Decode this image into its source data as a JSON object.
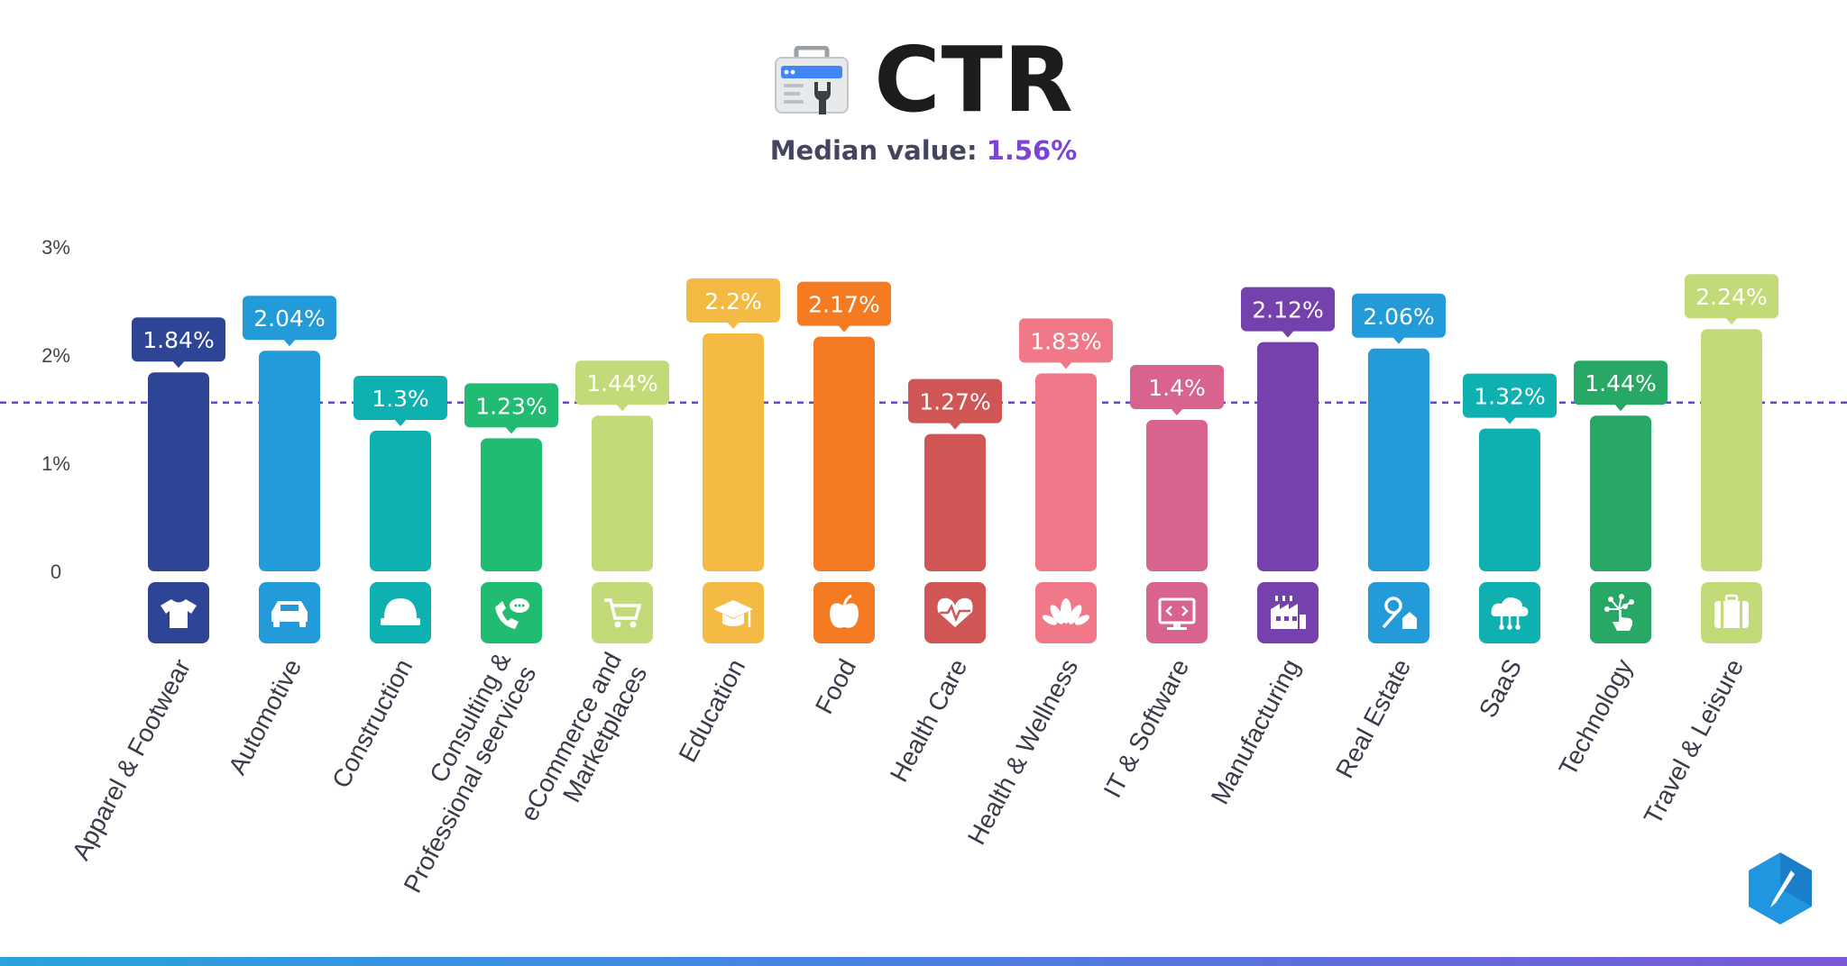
{
  "header": {
    "title": "CTR",
    "subtitle_label": "Median value:",
    "subtitle_value": "1.56%"
  },
  "icons": {
    "title_icon": "google-ads-tool-icon",
    "brand_badge": "pen-logo-icon"
  },
  "colors": {
    "median_line": "#6f3fd4",
    "axis_text": "#444444",
    "footer_gradient": [
      "#2aa3e0",
      "#7b58d8"
    ]
  },
  "chart_data": {
    "type": "bar",
    "title": "CTR",
    "subtitle": "Median value: 1.56%",
    "xlabel": "",
    "ylabel": "",
    "ylim": [
      0,
      3
    ],
    "yticks": [
      {
        "value": 0,
        "label": "0"
      },
      {
        "value": 1,
        "label": "1%"
      },
      {
        "value": 2,
        "label": "2%"
      },
      {
        "value": 3,
        "label": "3%"
      }
    ],
    "median": 1.56,
    "grid": false,
    "categories": [
      "Apparel & Footwear",
      "Automotive",
      "Construction",
      "Consulting & Professional seervices",
      "eCommerce and Marketplaces",
      "Education",
      "Food",
      "Health Care",
      "Health & Wellness",
      "IT & Software",
      "Manufacturing",
      "Real Estate",
      "SaaS",
      "Technology",
      "Travel & Leisure"
    ],
    "values": [
      1.84,
      2.04,
      1.3,
      1.23,
      1.44,
      2.2,
      2.17,
      1.27,
      1.83,
      1.4,
      2.12,
      2.06,
      1.32,
      1.44,
      2.24
    ],
    "value_labels": [
      "1.84%",
      "2.04%",
      "1.3%",
      "1.23%",
      "1.44%",
      "2.2%",
      "2.17%",
      "1.27%",
      "1.83%",
      "1.4%",
      "2.12%",
      "2.06%",
      "1.32%",
      "1.44%",
      "2.24%"
    ],
    "category_label_lines": [
      [
        "Apparel & Footwear"
      ],
      [
        "Automotive"
      ],
      [
        "Construction"
      ],
      [
        "Consulting &",
        "Professional seervices"
      ],
      [
        "eCommerce and",
        "Marketplaces"
      ],
      [
        "Education"
      ],
      [
        "Food"
      ],
      [
        "Health Care"
      ],
      [
        "Health & Wellness"
      ],
      [
        "IT & Software"
      ],
      [
        "Manufacturing"
      ],
      [
        "Real Estate"
      ],
      [
        "SaaS"
      ],
      [
        "Technology"
      ],
      [
        "Travel & Leisure"
      ]
    ],
    "bar_colors": [
      "#2e4596",
      "#229bd8",
      "#0fb0b0",
      "#21bb72",
      "#c2db78",
      "#f3bb44",
      "#f47b22",
      "#d05656",
      "#f07888",
      "#d8638e",
      "#7542ad",
      "#229bd8",
      "#0fb0b0",
      "#28a865",
      "#c2db78"
    ],
    "category_icons": [
      "tshirt-icon",
      "car-icon",
      "hard-hat-icon",
      "phone-chat-icon",
      "shopping-cart-icon",
      "graduation-cap-icon",
      "apple-icon",
      "heartbeat-icon",
      "lotus-icon",
      "code-monitor-icon",
      "factory-icon",
      "house-key-icon",
      "cloud-network-icon",
      "touch-network-icon",
      "suitcase-icon"
    ]
  }
}
